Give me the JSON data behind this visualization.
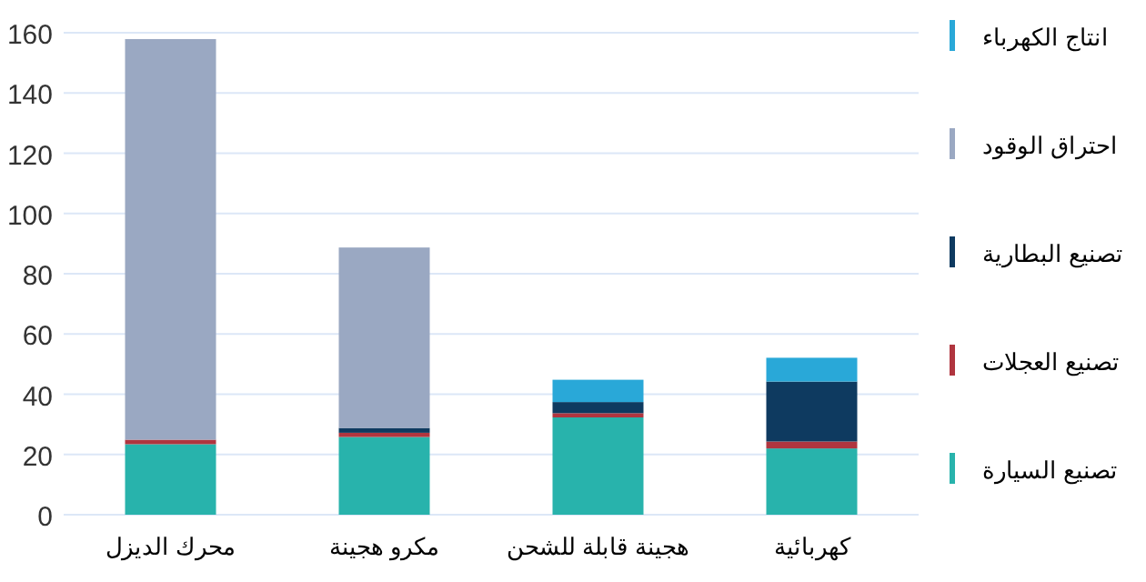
{
  "chart_data": {
    "type": "bar",
    "stacked": true,
    "categories": [
      "محرك الديزل",
      "مكرو هجينة",
      "هجينة قابلة للشحن",
      "كهربائية"
    ],
    "series": [
      {
        "name": "تصنيع السيارة",
        "color": "#28b3ac",
        "values": [
          23.4,
          25.8,
          32.3,
          22.0
        ]
      },
      {
        "name": "تصنيع العجلات",
        "color": "#b0353f",
        "values": [
          1.5,
          1.4,
          1.4,
          2.3
        ]
      },
      {
        "name": "تصنيع البطارية",
        "color": "#0e3a60",
        "values": [
          0,
          1.6,
          3.7,
          19.9
        ]
      },
      {
        "name": "احتراق الوقود",
        "color": "#9aa8c2",
        "values": [
          133,
          59.9,
          0,
          0
        ]
      },
      {
        "name": "انتاج الكهرباء",
        "color": "#29a8d8",
        "values": [
          0,
          0,
          7.4,
          7.9
        ]
      }
    ],
    "ylim": [
      0,
      160
    ],
    "yticks": [
      0,
      20,
      40,
      60,
      80,
      100,
      120,
      140,
      160
    ],
    "grid": "y",
    "legend": "right"
  }
}
